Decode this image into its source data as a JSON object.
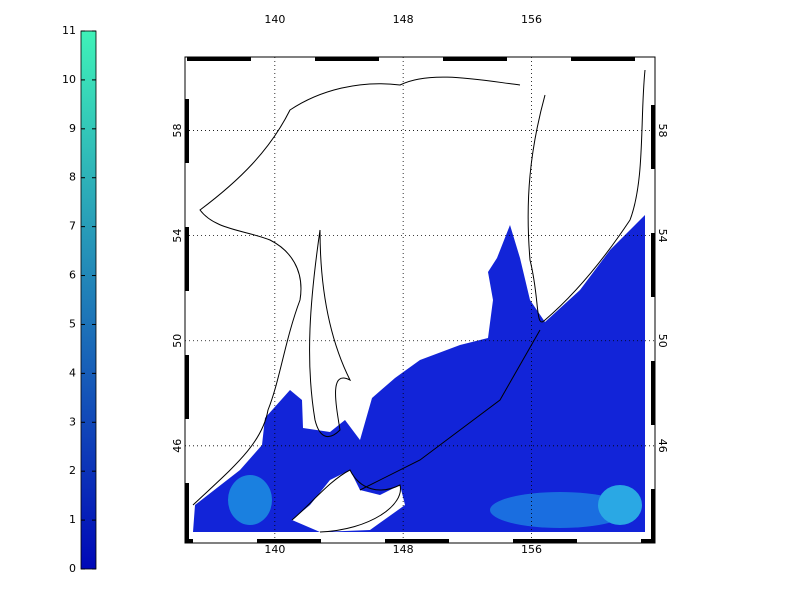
{
  "colorbar": {
    "lim": [
      0,
      11
    ],
    "ticks": [
      0,
      1,
      2,
      3,
      4,
      5,
      6,
      7,
      8,
      9,
      10,
      11
    ],
    "colors": [
      "#0008b8",
      "#3ff2b8"
    ]
  },
  "map": {
    "xlim": [
      134.4,
      163.7
    ],
    "ylim": [
      42.3,
      60.8
    ],
    "xticks": [
      140,
      148,
      156
    ],
    "yticks": [
      46,
      50,
      54,
      58
    ]
  }
}
